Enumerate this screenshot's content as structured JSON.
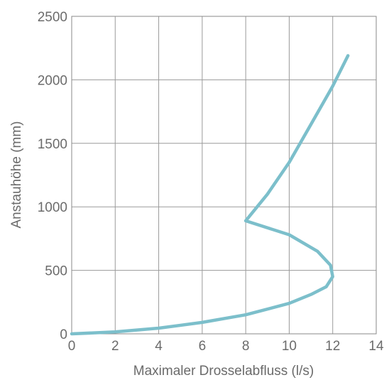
{
  "chart_data": {
    "type": "line",
    "title": "",
    "xlabel": "Maximaler Drosselabfluss (l/s)",
    "ylabel": "Anstauhöhe (mm)",
    "xlim": [
      0,
      14
    ],
    "ylim": [
      0,
      2500
    ],
    "xticks": [
      "0",
      "2",
      "4",
      "6",
      "8",
      "10",
      "12",
      "14"
    ],
    "yticks": [
      "0",
      "500",
      "1000",
      "1500",
      "2000",
      "2500"
    ],
    "grid": true,
    "color": "#7cbfcb",
    "series": [
      {
        "x": [
          0.0,
          2.0,
          4.0,
          6.0,
          8.0,
          10.0,
          11.0,
          11.7,
          12.0,
          11.9,
          11.3,
          10.0,
          8.0,
          9.0,
          10.0,
          11.0,
          12.0,
          12.7
        ],
        "y": [
          0,
          15,
          45,
          90,
          150,
          240,
          310,
          370,
          450,
          540,
          650,
          780,
          890,
          1100,
          1350,
          1650,
          1950,
          2190
        ]
      }
    ]
  }
}
